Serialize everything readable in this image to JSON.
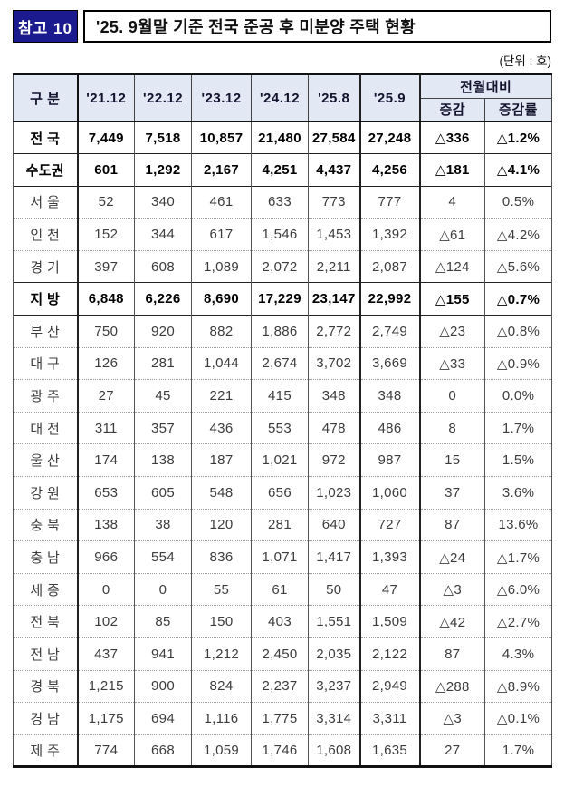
{
  "page": {
    "badge": "참고 10",
    "title": "'25. 9월말 기준 전국 준공 후 미분양 주택 현황",
    "unit": "(단위 : 호)"
  },
  "colors": {
    "badge_bg": "#1b1b8f",
    "header_bg": "#e3e8f5",
    "rule_dark": "#111111"
  },
  "table": {
    "corner_label": "구 분",
    "year_columns": [
      "'21.12",
      "'22.12",
      "'23.12",
      "'24.12",
      "'25.8",
      "'25.9"
    ],
    "mom_group_label": "전월대비",
    "mom_columns": [
      "증감",
      "증감률"
    ],
    "rows": [
      {
        "label": "전 국",
        "emphasis": true,
        "separator": "solid",
        "values": [
          "7,449",
          "7,518",
          "10,857",
          "21,480",
          "27,584",
          "27,248",
          "△336",
          "△1.2%"
        ]
      },
      {
        "label": "수도권",
        "emphasis": true,
        "separator": "solid",
        "values": [
          "601",
          "1,292",
          "2,167",
          "4,251",
          "4,437",
          "4,256",
          "△181",
          "△4.1%"
        ]
      },
      {
        "label": "서 울",
        "emphasis": false,
        "separator": "solid",
        "values": [
          "52",
          "340",
          "461",
          "633",
          "773",
          "777",
          "4",
          "0.5%"
        ]
      },
      {
        "label": "인 천",
        "emphasis": false,
        "separator": "dotted",
        "values": [
          "152",
          "344",
          "617",
          "1,546",
          "1,453",
          "1,392",
          "△61",
          "△4.2%"
        ]
      },
      {
        "label": "경 기",
        "emphasis": false,
        "separator": "dotted",
        "values": [
          "397",
          "608",
          "1,089",
          "2,072",
          "2,211",
          "2,087",
          "△124",
          "△5.6%"
        ]
      },
      {
        "label": "지 방",
        "emphasis": true,
        "separator": "solid",
        "values": [
          "6,848",
          "6,226",
          "8,690",
          "17,229",
          "23,147",
          "22,992",
          "△155",
          "△0.7%"
        ]
      },
      {
        "label": "부 산",
        "emphasis": false,
        "separator": "solid",
        "values": [
          "750",
          "920",
          "882",
          "1,886",
          "2,772",
          "2,749",
          "△23",
          "△0.8%"
        ]
      },
      {
        "label": "대 구",
        "emphasis": false,
        "separator": "dotted",
        "values": [
          "126",
          "281",
          "1,044",
          "2,674",
          "3,702",
          "3,669",
          "△33",
          "△0.9%"
        ]
      },
      {
        "label": "광 주",
        "emphasis": false,
        "separator": "dotted",
        "values": [
          "27",
          "45",
          "221",
          "415",
          "348",
          "348",
          "0",
          "0.0%"
        ]
      },
      {
        "label": "대 전",
        "emphasis": false,
        "separator": "dotted",
        "values": [
          "311",
          "357",
          "436",
          "553",
          "478",
          "486",
          "8",
          "1.7%"
        ]
      },
      {
        "label": "울 산",
        "emphasis": false,
        "separator": "dotted",
        "values": [
          "174",
          "138",
          "187",
          "1,021",
          "972",
          "987",
          "15",
          "1.5%"
        ]
      },
      {
        "label": "강 원",
        "emphasis": false,
        "separator": "dotted",
        "values": [
          "653",
          "605",
          "548",
          "656",
          "1,023",
          "1,060",
          "37",
          "3.6%"
        ]
      },
      {
        "label": "충 북",
        "emphasis": false,
        "separator": "dotted",
        "values": [
          "138",
          "38",
          "120",
          "281",
          "640",
          "727",
          "87",
          "13.6%"
        ]
      },
      {
        "label": "충 남",
        "emphasis": false,
        "separator": "dotted",
        "values": [
          "966",
          "554",
          "836",
          "1,071",
          "1,417",
          "1,393",
          "△24",
          "△1.7%"
        ]
      },
      {
        "label": "세 종",
        "emphasis": false,
        "separator": "dotted",
        "values": [
          "0",
          "0",
          "55",
          "61",
          "50",
          "47",
          "△3",
          "△6.0%"
        ]
      },
      {
        "label": "전 북",
        "emphasis": false,
        "separator": "dotted",
        "values": [
          "102",
          "85",
          "150",
          "403",
          "1,551",
          "1,509",
          "△42",
          "△2.7%"
        ]
      },
      {
        "label": "전 남",
        "emphasis": false,
        "separator": "dotted",
        "values": [
          "437",
          "941",
          "1,212",
          "2,450",
          "2,035",
          "2,122",
          "87",
          "4.3%"
        ]
      },
      {
        "label": "경 북",
        "emphasis": false,
        "separator": "dotted",
        "values": [
          "1,215",
          "900",
          "824",
          "2,237",
          "3,237",
          "2,949",
          "△288",
          "△8.9%"
        ]
      },
      {
        "label": "경 남",
        "emphasis": false,
        "separator": "dotted",
        "values": [
          "1,175",
          "694",
          "1,116",
          "1,775",
          "3,314",
          "3,311",
          "△3",
          "△0.1%"
        ]
      },
      {
        "label": "제 주",
        "emphasis": false,
        "separator": "dotted",
        "values": [
          "774",
          "668",
          "1,059",
          "1,746",
          "1,608",
          "1,635",
          "27",
          "1.7%"
        ]
      }
    ]
  }
}
